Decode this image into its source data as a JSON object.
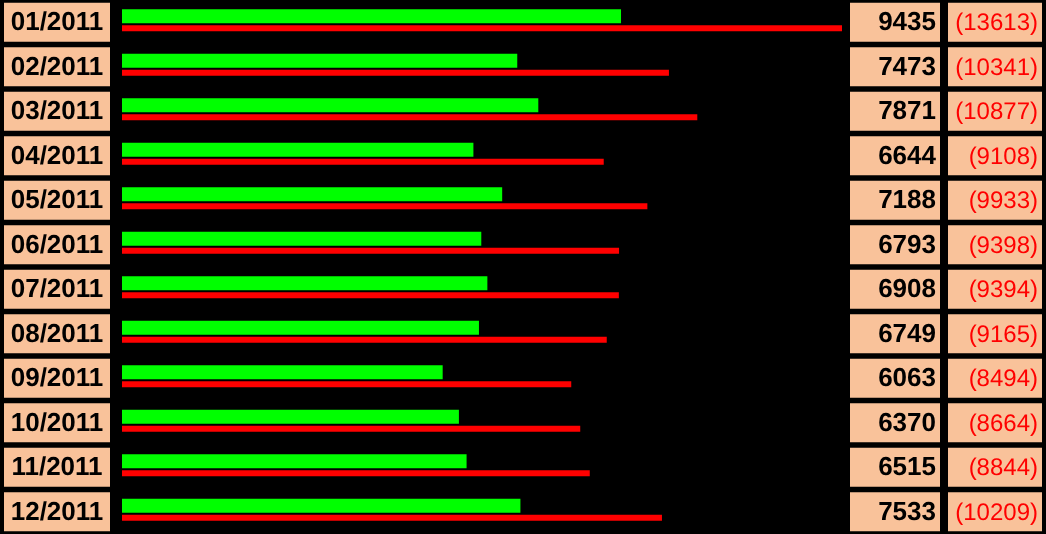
{
  "chart_data": {
    "type": "bar",
    "orientation": "horizontal",
    "categories": [
      "01/2011",
      "02/2011",
      "03/2011",
      "04/2011",
      "05/2011",
      "06/2011",
      "07/2011",
      "08/2011",
      "09/2011",
      "10/2011",
      "11/2011",
      "12/2011"
    ],
    "series": [
      {
        "color": "#00ff00",
        "values": [
          9435,
          7473,
          7871,
          6644,
          7188,
          6793,
          6908,
          6749,
          6063,
          6370,
          6515,
          7533
        ],
        "value_labels": [
          "9435",
          "7473",
          "7871",
          "6644",
          "7188",
          "6793",
          "6908",
          "6749",
          "6063",
          "6370",
          "6515",
          "7533"
        ]
      },
      {
        "color": "#ff0000",
        "values": [
          13613,
          10341,
          10877,
          9108,
          9933,
          9398,
          9394,
          9165,
          8494,
          8664,
          8844,
          10209
        ],
        "value_labels": [
          "(13613)",
          "(10341)",
          "(10877)",
          "(9108)",
          "(9933)",
          "(9398)",
          "(9394)",
          "(9165)",
          "(8494)",
          "(8664)",
          "(8844)",
          "(10209)"
        ]
      }
    ]
  }
}
